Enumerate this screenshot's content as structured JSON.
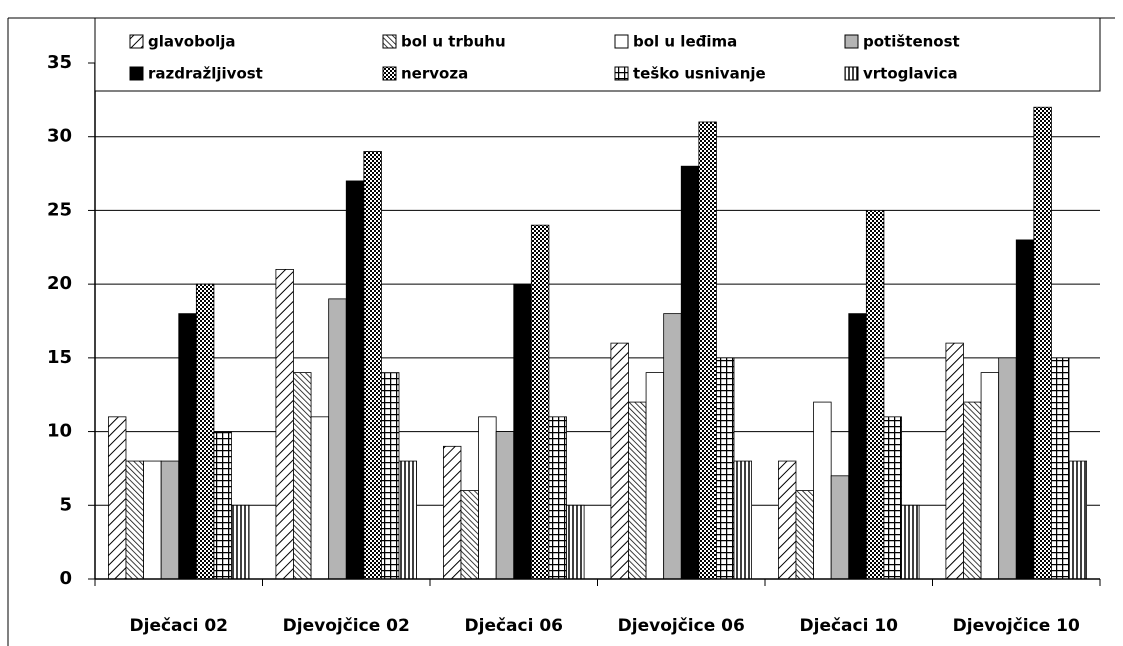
{
  "chart_data": {
    "type": "bar",
    "categories": [
      "Dječaci 02",
      "Djevojčice 02",
      "Dječaci 06",
      "Djevojčice 06",
      "Dječaci 10",
      "Djevojčice 10"
    ],
    "series": [
      {
        "name": "glavobolja",
        "color": "#000000",
        "pattern": "diagonal",
        "values": [
          11,
          21,
          9,
          16,
          8,
          16
        ]
      },
      {
        "name": "bol u trbuhu",
        "color": "#000000",
        "pattern": "back-diagonal",
        "values": [
          8,
          14,
          6,
          12,
          6,
          12
        ]
      },
      {
        "name": "bol u leđima",
        "color": "#ffffff",
        "values": [
          8,
          11,
          11,
          14,
          12,
          14
        ]
      },
      {
        "name": "potištenost",
        "color": "#b4b4b4",
        "values": [
          8,
          19,
          10,
          18,
          7,
          15
        ]
      },
      {
        "name": "razdražljivost",
        "color": "#000000",
        "values": [
          18,
          27,
          20,
          28,
          18,
          23
        ]
      },
      {
        "name": "nervoza",
        "color": "#000000",
        "pattern": "checker",
        "values": [
          20,
          29,
          24,
          31,
          25,
          32
        ]
      },
      {
        "name": "teško usnivanje",
        "color": "#000000",
        "pattern": "grid",
        "values": [
          10,
          14,
          11,
          15,
          11,
          15
        ]
      },
      {
        "name": "vrtoglavica",
        "color": "#000000",
        "pattern": "vertical",
        "values": [
          5,
          8,
          5,
          8,
          5,
          8
        ]
      }
    ],
    "ylim": [
      0,
      35
    ],
    "yticks": [
      0,
      5,
      10,
      15,
      20,
      25,
      30,
      35
    ],
    "grid": true,
    "legend": "top"
  }
}
